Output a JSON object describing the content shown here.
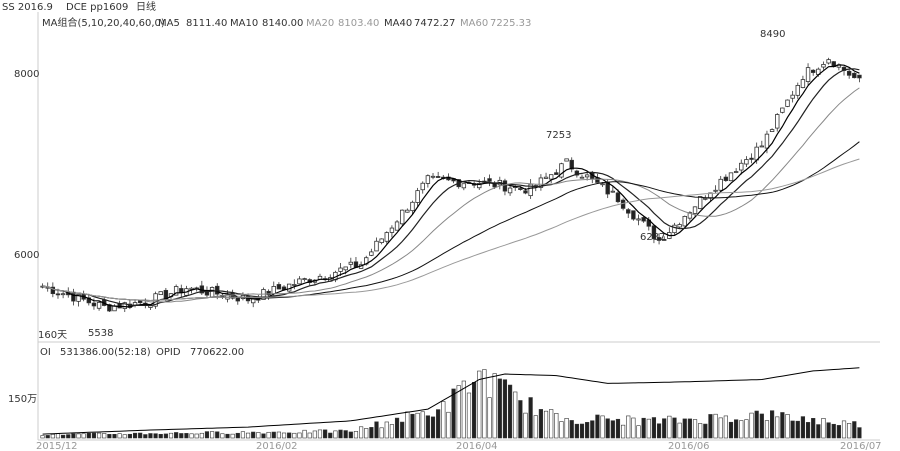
{
  "header": {
    "left_text": "SS 2016.9",
    "contract": "DCE pp1609",
    "period": "日线"
  },
  "ma_panel": {
    "label": "MA组合(5,10,20,40,60,0)",
    "items": [
      {
        "name": "MA5",
        "value": "8111.40",
        "color": "#000000"
      },
      {
        "name": "MA10",
        "value": "8140.00",
        "color": "#222222"
      },
      {
        "name": "MA20",
        "value": "8103.40",
        "color": "#888888"
      },
      {
        "name": "MA40",
        "value": "7472.27",
        "color": "#111111"
      },
      {
        "name": "MA60",
        "value": "7225.33",
        "color": "#999999"
      }
    ]
  },
  "oi_panel": {
    "oi_label": "OI",
    "oi_value": "531386.00(52:18)",
    "opid_label": "OPID",
    "opid_value": "770622.00",
    "y_tick": "150万"
  },
  "annotations": {
    "high": "8490",
    "mid_peak": "7253",
    "low": "6287",
    "start_low": "5538",
    "days": "160天"
  },
  "chart_data": {
    "type": "candlestick",
    "y_ticks": [
      6000,
      8000
    ],
    "ylim": [
      5300,
      8600
    ],
    "x_tick_labels": [
      "2015/12",
      "2016/02",
      "2016/04",
      "2016/06",
      "2016/07"
    ],
    "candle_count": 160,
    "price_path_anchors": [
      {
        "i": 0,
        "close": 5800
      },
      {
        "i": 12,
        "close": 5560
      },
      {
        "i": 20,
        "close": 5620
      },
      {
        "i": 28,
        "close": 5780
      },
      {
        "i": 40,
        "close": 5650
      },
      {
        "i": 50,
        "close": 5850
      },
      {
        "i": 62,
        "close": 6050
      },
      {
        "i": 75,
        "close": 7000
      },
      {
        "i": 85,
        "close": 6980
      },
      {
        "i": 95,
        "close": 6900
      },
      {
        "i": 102,
        "close": 7200
      },
      {
        "i": 112,
        "close": 6800
      },
      {
        "i": 120,
        "close": 6320
      },
      {
        "i": 130,
        "close": 6900
      },
      {
        "i": 140,
        "close": 7400
      },
      {
        "i": 148,
        "close": 8200
      },
      {
        "i": 153,
        "close": 8400
      },
      {
        "i": 159,
        "close": 8120
      }
    ],
    "open_interest_series": [
      {
        "i": 0,
        "v": 0.05
      },
      {
        "i": 20,
        "v": 0.1
      },
      {
        "i": 40,
        "v": 0.14
      },
      {
        "i": 60,
        "v": 0.22
      },
      {
        "i": 75,
        "v": 0.37
      },
      {
        "i": 85,
        "v": 0.75
      },
      {
        "i": 90,
        "v": 0.82
      },
      {
        "i": 100,
        "v": 0.8
      },
      {
        "i": 110,
        "v": 0.7
      },
      {
        "i": 125,
        "v": 0.72
      },
      {
        "i": 140,
        "v": 0.75
      },
      {
        "i": 150,
        "v": 0.86
      },
      {
        "i": 159,
        "v": 0.9
      }
    ],
    "volume_levels": [
      {
        "i": 0,
        "v": 0.05
      },
      {
        "i": 60,
        "v": 0.1
      },
      {
        "i": 78,
        "v": 0.45
      },
      {
        "i": 85,
        "v": 0.95
      },
      {
        "i": 92,
        "v": 0.6
      },
      {
        "i": 100,
        "v": 0.3
      },
      {
        "i": 120,
        "v": 0.25
      },
      {
        "i": 140,
        "v": 0.35
      },
      {
        "i": 159,
        "v": 0.2
      }
    ]
  }
}
